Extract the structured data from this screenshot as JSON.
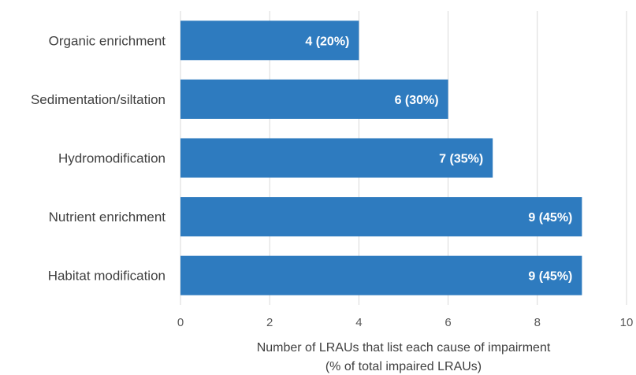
{
  "chart_data": {
    "type": "bar",
    "orientation": "horizontal",
    "categories": [
      "Organic enrichment",
      "Sedimentation/siltation",
      "Hydromodification",
      "Nutrient enrichment",
      "Habitat modification"
    ],
    "values": [
      4,
      6,
      7,
      9,
      9
    ],
    "data_labels": [
      "4 (20%)",
      "6 (30%)",
      "7 (35%)",
      "9 (45%)",
      "9 (45%)"
    ],
    "xlabel": [
      "Number of LRAUs that list each cause of impairment",
      "(% of total impaired LRAUs)"
    ],
    "xlim": [
      0,
      10
    ],
    "xticks": [
      0,
      2,
      4,
      6,
      8,
      10
    ],
    "grid": true,
    "legend": "none",
    "bar_color": "#2e7bbf"
  }
}
